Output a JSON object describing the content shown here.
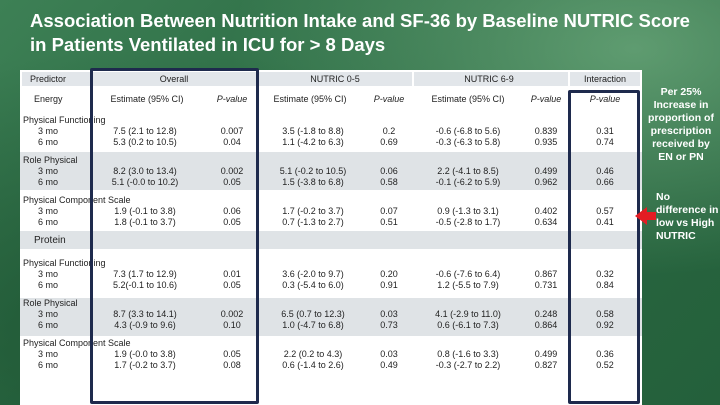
{
  "title": "Association Between Nutrition Intake and SF-36 by Baseline NUTRIC Score in Patients Ventilated in ICU for > 8 Days",
  "headers": {
    "predictor": "Predictor",
    "overall": "Overall",
    "nutric_low": "NUTRIC 0-5",
    "nutric_high": "NUTRIC 6-9",
    "interaction": "Interaction",
    "energy": "Energy",
    "estimate": "Estimate (95% CI)",
    "pvalue": "P-value"
  },
  "energy_groups": [
    {
      "name": "Physical Functioning",
      "rows": [
        {
          "label": "3 mo",
          "ov_est": "7.5 (2.1 to 12.8)",
          "ov_p": "0.007",
          "lo_est": "3.5 (-1.8 to 8.8)",
          "lo_p": "0.2",
          "hi_est": "-0.6 (-6.8 to 5.6)",
          "hi_p": "0.839",
          "int_p": "0.31"
        },
        {
          "label": "6 mo",
          "ov_est": "5.3 (0.2 to 10.5)",
          "ov_p": "0.04",
          "lo_est": "1.1 (-4.2 to 6.3)",
          "lo_p": "0.69",
          "hi_est": "-0.3 (-6.3 to 5.8)",
          "hi_p": "0.935",
          "int_p": "0.74"
        }
      ]
    },
    {
      "name": "Role Physical",
      "rows": [
        {
          "label": "3 mo",
          "ov_est": "8.2 (3.0 to 13.4)",
          "ov_p": "0.002",
          "lo_est": "5.1 (-0.2 to 10.5)",
          "lo_p": "0.06",
          "hi_est": "2.2 (-4.1 to 8.5)",
          "hi_p": "0.499",
          "int_p": "0.46"
        },
        {
          "label": "6 mo",
          "ov_est": "5.1 (-0.0 to 10.2)",
          "ov_p": "0.05",
          "lo_est": "1.5 (-3.8 to 6.8)",
          "lo_p": "0.58",
          "hi_est": "-0.1 (-6.2 to 5.9)",
          "hi_p": "0.962",
          "int_p": "0.66"
        }
      ]
    },
    {
      "name": "Physical Component Scale",
      "rows": [
        {
          "label": "3 mo",
          "ov_est": "1.9 (-0.1 to 3.8)",
          "ov_p": "0.06",
          "lo_est": "1.7 (-0.2 to 3.7)",
          "lo_p": "0.07",
          "hi_est": "0.9 (-1.3 to 3.1)",
          "hi_p": "0.402",
          "int_p": "0.57"
        },
        {
          "label": "6 mo",
          "ov_est": "1.8 (-0.1 to 3.7)",
          "ov_p": "0.05",
          "lo_est": "0.7 (-1.3 to 2.7)",
          "lo_p": "0.51",
          "hi_est": "-0.5 (-2.8 to 1.7)",
          "hi_p": "0.634",
          "int_p": "0.41"
        }
      ]
    }
  ],
  "protein_label": "Protein",
  "protein_groups": [
    {
      "name": "Physical Functioning",
      "rows": [
        {
          "label": "3 mo",
          "ov_est": "7.3 (1.7 to 12.9)",
          "ov_p": "0.01",
          "lo_est": "3.6 (-2.0 to 9.7)",
          "lo_p": "0.20",
          "hi_est": "-0.6 (-7.6 to 6.4)",
          "hi_p": "0.867",
          "int_p": "0.32"
        },
        {
          "label": "6 mo",
          "ov_est": "5.2(-0.1 to 10.6)",
          "ov_p": "0.05",
          "lo_est": "0.3 (-5.4 to 6.0)",
          "lo_p": "0.91",
          "hi_est": "1.2 (-5.5 to 7.9)",
          "hi_p": "0.731",
          "int_p": "0.84"
        }
      ]
    },
    {
      "name": "Role Physical",
      "rows": [
        {
          "label": "3 mo",
          "ov_est": "8.7 (3.3 to 14.1)",
          "ov_p": "0.002",
          "lo_est": "6.5 (0.7 to 12.3)",
          "lo_p": "0.03",
          "hi_est": "4.1 (-2.9 to 11.0)",
          "hi_p": "0.248",
          "int_p": "0.58"
        },
        {
          "label": "6 mo",
          "ov_est": "4.3 (-0.9 to 9.6)",
          "ov_p": "0.10",
          "lo_est": "1.0 (-4.7 to 6.8)",
          "lo_p": "0.73",
          "hi_est": "0.6 (-6.1 to 7.3)",
          "hi_p": "0.864",
          "int_p": "0.92"
        }
      ]
    },
    {
      "name": "Physical Component Scale",
      "rows": [
        {
          "label": "3 mo",
          "ov_est": "1.9 (-0.0 to 3.8)",
          "ov_p": "0.05",
          "lo_est": "2.2 (0.2 to 4.3)",
          "lo_p": "0.03",
          "hi_est": "0.8 (-1.6 to 3.3)",
          "hi_p": "0.499",
          "int_p": "0.36"
        },
        {
          "label": "6 mo",
          "ov_est": "1.7 (-0.2 to 3.7)",
          "ov_p": "0.08",
          "lo_est": "0.6 (-1.4 to 2.6)",
          "lo_p": "0.49",
          "hi_est": "-0.3 (-2.7 to 2.2)",
          "hi_p": "0.827",
          "int_p": "0.52"
        }
      ]
    }
  ],
  "callouts": {
    "percent_increase": "Per 25% Increase in proportion of prescription received by EN or PN",
    "no_difference": "No difference in low vs High NUTRIC"
  },
  "colors": {
    "background": "#2f6e46",
    "highlight_border": "#1e2a4d",
    "arrow": "#e31c23",
    "header_band": "#e2e6ea"
  }
}
